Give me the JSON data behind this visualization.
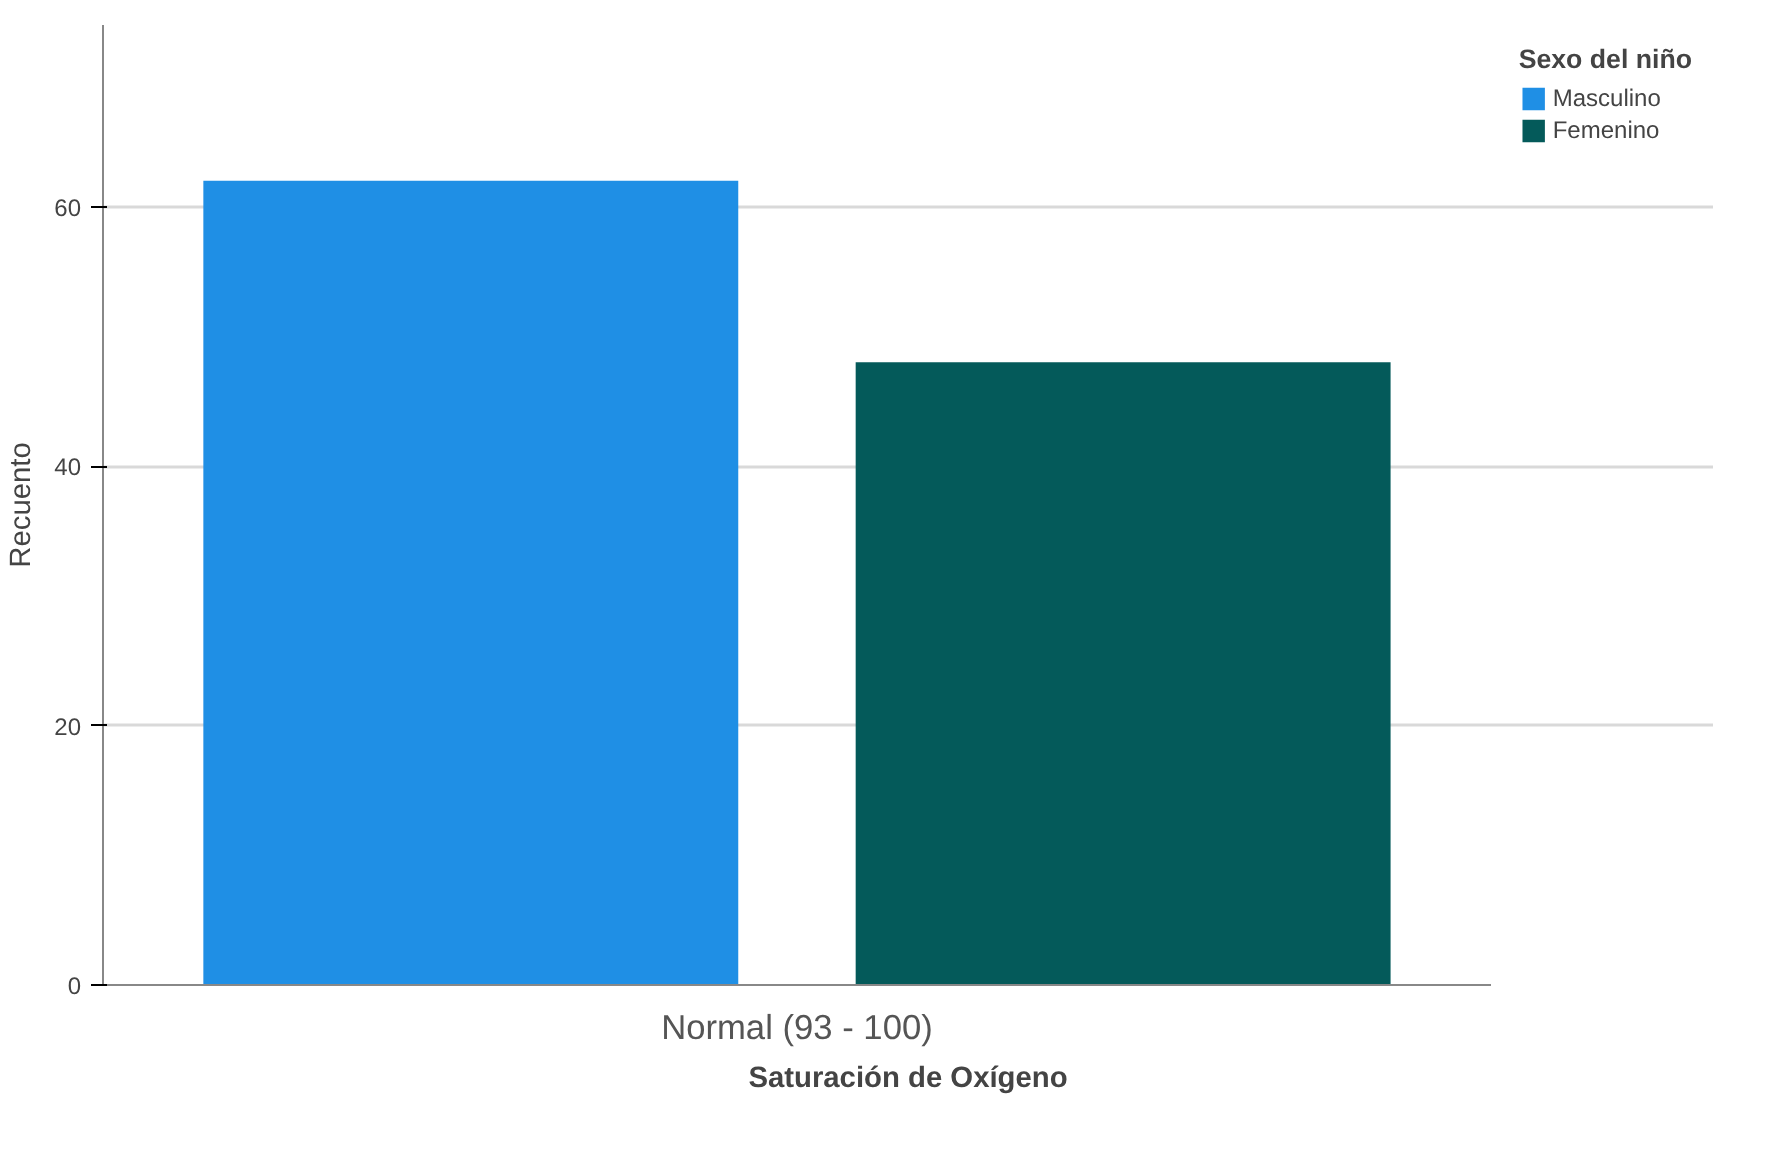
{
  "chart_data": {
    "type": "bar",
    "xlabel": "Saturación de Oxígeno",
    "ylabel": "Recuento",
    "legend_title": "Sexo del niño",
    "categories": [
      "Normal (93 - 100)"
    ],
    "series": [
      {
        "name": "Masculino",
        "color": "#1f8fe5",
        "values": [
          62
        ]
      },
      {
        "name": "Femenino",
        "color": "#045a5a",
        "values": [
          48
        ]
      }
    ],
    "ylim": [
      0,
      74
    ],
    "yticks": [
      0,
      20,
      40,
      60
    ],
    "grid": "y",
    "legend": "top right"
  }
}
